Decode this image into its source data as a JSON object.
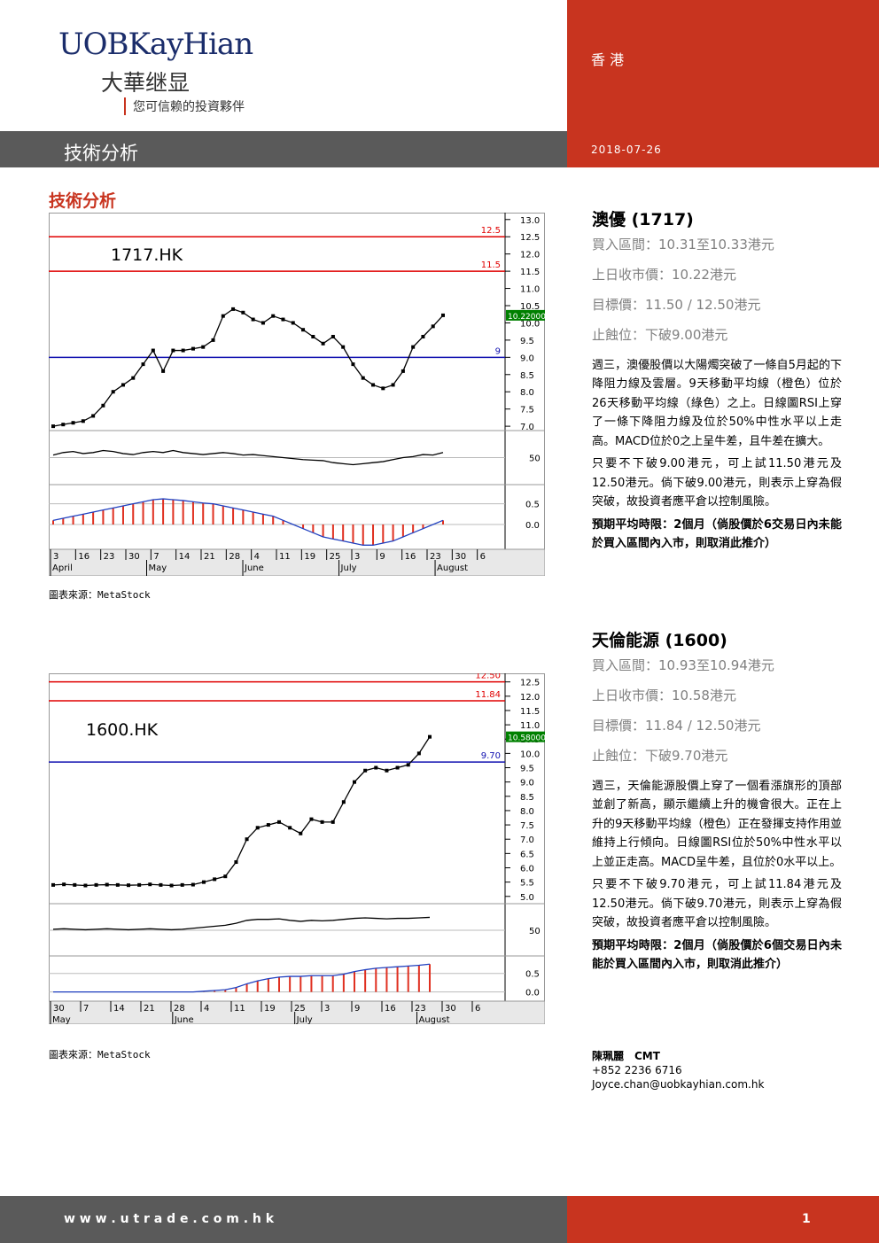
{
  "header": {
    "logo": "UOBKayHian",
    "logo_cn": "大華继显",
    "tagline": "您可信赖的投資夥伴",
    "region": "香 港",
    "section": "技術分析",
    "date": "2018-07-26"
  },
  "section_title": "技術分析",
  "charts": [
    {
      "type": "line",
      "label": "1717.HK",
      "color": "#000000",
      "ylim": [
        6.9,
        13.2
      ],
      "yticks": [
        {
          "value": 7,
          "label": "7.0"
        },
        7.5,
        {
          "value": 8,
          "label": "8.0"
        },
        8.5,
        {
          "value": 9,
          "label": "9.0"
        },
        9.5,
        {
          "value": 10,
          "label": "10.0"
        },
        10.5,
        {
          "value": 11,
          "label": "11.0"
        },
        11.5,
        {
          "value": 12,
          "label": "12.0"
        },
        12.5,
        {
          "value": 13,
          "label": "13.0"
        }
      ],
      "levels": [
        {
          "value": 12.5,
          "color": "#e00000"
        },
        {
          "value": 11.5,
          "color": "#e00000"
        },
        {
          "value": 9,
          "color": "#1010b0"
        }
      ],
      "last": {
        "value": 10.22,
        "label": "10.22000"
      },
      "values": [
        7.0,
        7.05,
        7.1,
        7.15,
        7.3,
        7.6,
        8.0,
        8.2,
        8.4,
        8.8,
        9.2,
        8.6,
        9.2,
        9.2,
        9.25,
        9.3,
        9.5,
        10.2,
        10.4,
        10.3,
        10.1,
        10.0,
        10.2,
        10.1,
        10.0,
        9.8,
        9.6,
        9.4,
        9.6,
        9.3,
        8.8,
        8.4,
        8.2,
        8.1,
        8.2,
        8.6,
        9.3,
        9.6,
        9.9,
        10.22
      ],
      "rsi": {
        "ylim": [
          0,
          100
        ],
        "yticks": [
          50
        ],
        "values": [
          55,
          60,
          62,
          58,
          60,
          64,
          62,
          58,
          56,
          60,
          62,
          60,
          64,
          60,
          58,
          56,
          58,
          60,
          58,
          55,
          56,
          54,
          52,
          50,
          48,
          46,
          45,
          44,
          40,
          38,
          36,
          38,
          40,
          42,
          46,
          50,
          52,
          56,
          55,
          60
        ]
      },
      "macd": {
        "ylim": [
          -0.6,
          0.9
        ],
        "yticks": [
          0.5,
          {
            "value": 0,
            "label": "0.0"
          }
        ],
        "values": [
          0.1,
          0.15,
          0.2,
          0.25,
          0.3,
          0.35,
          0.4,
          0.45,
          0.5,
          0.55,
          0.6,
          0.62,
          0.6,
          0.58,
          0.55,
          0.52,
          0.5,
          0.45,
          0.4,
          0.35,
          0.3,
          0.25,
          0.2,
          0.1,
          0,
          -0.1,
          -0.2,
          -0.3,
          -0.35,
          -0.4,
          -0.45,
          -0.5,
          -0.5,
          -0.45,
          -0.4,
          -0.3,
          -0.2,
          -0.1,
          0,
          0.1
        ]
      },
      "xlabels": [
        "3",
        "16",
        "23",
        "30",
        "7",
        "14",
        "21",
        "28",
        "4",
        "11",
        "19",
        "25",
        "3",
        "9",
        "16",
        "23",
        "30",
        "6"
      ],
      "months": [
        "April",
        "May",
        "June",
        "July",
        "August"
      ]
    },
    {
      "type": "line",
      "label": "1600.HK",
      "color": "#000000",
      "ylim": [
        4.9,
        12.8
      ],
      "yticks": [
        {
          "value": 5,
          "label": "5.0"
        },
        5.5,
        {
          "value": 6,
          "label": "6.0"
        },
        6.5,
        {
          "value": 7,
          "label": "7.0"
        },
        7.5,
        {
          "value": 8,
          "label": "8.0"
        },
        8.5,
        {
          "value": 9,
          "label": "9.0"
        },
        9.5,
        {
          "value": 10,
          "label": "10.0"
        },
        10.5,
        {
          "value": 11,
          "label": "11.0"
        },
        11.5,
        {
          "value": 12,
          "label": "12.0"
        },
        12.5
      ],
      "levels": [
        {
          "value": 12.5,
          "label": "12.50",
          "color": "#e00000"
        },
        {
          "value": 11.84,
          "color": "#e00000"
        },
        {
          "value": 9.7,
          "label": "9.70",
          "color": "#1010b0"
        }
      ],
      "last": {
        "value": 10.58,
        "label": "10.58000"
      },
      "values": [
        5.4,
        5.42,
        5.4,
        5.38,
        5.4,
        5.41,
        5.4,
        5.39,
        5.4,
        5.42,
        5.4,
        5.38,
        5.4,
        5.41,
        5.5,
        5.6,
        5.7,
        6.2,
        7.0,
        7.4,
        7.5,
        7.6,
        7.4,
        7.2,
        7.7,
        7.6,
        7.6,
        8.3,
        9.0,
        9.4,
        9.5,
        9.4,
        9.5,
        9.6,
        10.0,
        10.58
      ],
      "rsi": {
        "ylim": [
          0,
          100
        ],
        "yticks": [
          50
        ],
        "values": [
          52,
          53,
          52,
          51,
          52,
          53,
          52,
          51,
          52,
          53,
          52,
          51,
          52,
          54,
          56,
          58,
          60,
          64,
          70,
          72,
          72,
          73,
          70,
          68,
          70,
          69,
          70,
          72,
          74,
          75,
          74,
          73,
          74,
          74,
          75,
          76
        ]
      },
      "macd": {
        "ylim": [
          -0.2,
          0.9
        ],
        "yticks": [
          0.5,
          {
            "value": 0,
            "label": "0.0"
          }
        ],
        "values": [
          0,
          0,
          0,
          0,
          0,
          0,
          0,
          0,
          0,
          0,
          0,
          0,
          0,
          0,
          0.02,
          0.04,
          0.06,
          0.12,
          0.22,
          0.3,
          0.36,
          0.4,
          0.42,
          0.42,
          0.44,
          0.44,
          0.44,
          0.48,
          0.55,
          0.6,
          0.64,
          0.66,
          0.68,
          0.7,
          0.72,
          0.75
        ]
      },
      "xlabels": [
        "30",
        "7",
        "14",
        "21",
        "28",
        "4",
        "11",
        "19",
        "25",
        "3",
        "9",
        "16",
        "23",
        "30",
        "6"
      ],
      "months": [
        "May",
        "June",
        "July",
        "August"
      ]
    }
  ],
  "sources": [
    "圖表來源：MetaStock",
    "圖表來源：MetaStock"
  ],
  "stocks": [
    {
      "name": "澳優 (1717)",
      "buy": "買入區間：10.31至10.33港元",
      "close": "上日收市價：10.22港元",
      "target": "目標價：11.50 / 12.50港元",
      "stop": "止蝕位：下破9.00港元",
      "paragraphs": [
        "週三，澳優股價以大陽燭突破了一條自5月起的下降阻力線及雲層。9天移動平均線（橙色）位於26天移動平均線（綠色）之上。日線圖RSI上穿了一條下降阻力線及位於50%中性水平以上走高。MACD位於0之上呈牛差，且牛差在擴大。",
        "只要不下破9.00港元，可上試11.50港元及12.50港元。倘下破9.00港元，則表示上穿為假突破，故投資者應平倉以控制風險。"
      ],
      "period": "預期平均時限：2個月（倘股價於6交易日內未能於買入區間內入市，則取消此推介）"
    },
    {
      "name": "天倫能源 (1600)",
      "buy": "買入區間：10.93至10.94港元",
      "close": "上日收市價：10.58港元",
      "target": "目標價：11.84 / 12.50港元",
      "stop": "止蝕位：下破9.70港元",
      "paragraphs": [
        "週三，天倫能源股價上穿了一個看漲旗形的頂部並創了新高，顯示繼續上升的機會很大。正在上升的9天移動平均線（橙色）正在發揮支持作用並維持上行傾向。日線圖RSI位於50%中性水平以上並正走高。MACD呈牛差，且位於0水平以上。",
        "只要不下破9.70港元，可上試11.84港元及12.50港元。倘下破9.70港元，則表示上穿為假突破，故投資者應平倉以控制風險。"
      ],
      "period": "預期平均時限：2個月（倘股價於6個交易日內未能於買入區間內入市，則取消此推介）"
    }
  ],
  "author": {
    "name": "陳珮麗　CMT",
    "phone": "+852 2236 6716",
    "email": "Joyce.chan@uobkayhian.com.hk"
  },
  "footer": {
    "url": "w w w . u t r a d e . c o m . h k",
    "page": 1
  }
}
